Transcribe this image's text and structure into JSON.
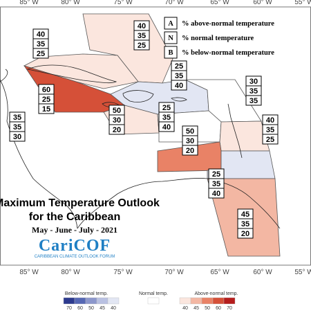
{
  "map": {
    "lon_labels": [
      "85° W",
      "80° W",
      "75° W",
      "70° W",
      "65° W",
      "60° W",
      "55° W"
    ],
    "title_line1": "Maximum Temperature Outlook",
    "title_line2": "for the Caribbean",
    "period": "May - June - July - 2021",
    "logo_text": "CariCOF",
    "logo_subtitle": "CARIBBEAN CLIMATE OUTLOOK FORUM"
  },
  "legend_key": [
    {
      "letter": "A",
      "text": "% above-normal temperature"
    },
    {
      "letter": "N",
      "text": "% normal temperature"
    },
    {
      "letter": "B",
      "text": "% below-normal temperature"
    }
  ],
  "regions": [
    {
      "name": "central-america-west",
      "values": [
        "35",
        "35",
        "30"
      ]
    },
    {
      "name": "gulf-mexico-cuba",
      "values": [
        "40",
        "35",
        "25"
      ]
    },
    {
      "name": "bahamas",
      "values": [
        "40",
        "35",
        "25"
      ]
    },
    {
      "name": "cuba-cayman",
      "values": [
        "60",
        "25",
        "15"
      ]
    },
    {
      "name": "jamaica",
      "values": [
        "50",
        "30",
        "20"
      ]
    },
    {
      "name": "hispaniola-north",
      "values": [
        "25",
        "35",
        "40"
      ]
    },
    {
      "name": "hispaniola-south",
      "values": [
        "25",
        "35",
        "40"
      ]
    },
    {
      "name": "atlantic-east",
      "values": [
        "30",
        "35",
        "35"
      ]
    },
    {
      "name": "puerto-rico-south",
      "values": [
        "50",
        "30",
        "20"
      ]
    },
    {
      "name": "leeward-islands",
      "values": [
        "40",
        "35",
        "25"
      ]
    },
    {
      "name": "windward-islands",
      "values": [
        "25",
        "35",
        "40"
      ]
    },
    {
      "name": "guianas",
      "values": [
        "45",
        "35",
        "20"
      ]
    }
  ],
  "colorbar": {
    "below_label": "Below-normal temp.",
    "normal_label": "Normal temp.",
    "above_label": "Above-normal temp.",
    "below_ticks": [
      "70",
      "60",
      "50",
      "45",
      "40"
    ],
    "above_ticks": [
      "40",
      "45",
      "50",
      "60",
      "70"
    ],
    "colors": {
      "below": [
        "#2c3a8e",
        "#5668b4",
        "#8c97cc",
        "#b9c1e2",
        "#e2e6f3"
      ],
      "normal": "#ffffff",
      "above": [
        "#fbe6de",
        "#f3b7a3",
        "#e98266",
        "#d55038",
        "#b51d1c"
      ]
    }
  }
}
